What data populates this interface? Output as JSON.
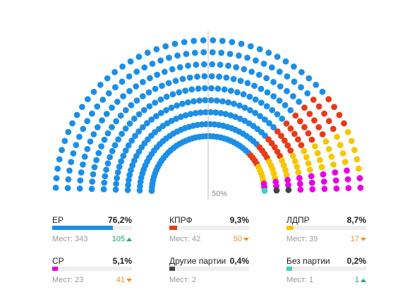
{
  "chart_data": {
    "type": "hemicycle",
    "total_seats": 450,
    "majority_label": "50%",
    "parties": [
      {
        "name": "ЕР",
        "percent": "76,2%",
        "percent_value": 76.2,
        "seats_label": "Мест:",
        "seats": 343,
        "change": "105",
        "direction": "up",
        "color": "#1b8fe8"
      },
      {
        "name": "КПРФ",
        "percent": "9,3%",
        "percent_value": 9.3,
        "seats_label": "Мест:",
        "seats": 42,
        "change": "50",
        "direction": "down",
        "color": "#e83a18"
      },
      {
        "name": "ЛДПР",
        "percent": "8,7%",
        "percent_value": 8.7,
        "seats_label": "Мест:",
        "seats": 39,
        "change": "17",
        "direction": "down",
        "color": "#f6c700"
      },
      {
        "name": "СР",
        "percent": "5,1%",
        "percent_value": 5.1,
        "seats_label": "Мест:",
        "seats": 23,
        "change": "41",
        "direction": "down",
        "color": "#e800e0"
      },
      {
        "name": "Другие партии",
        "percent": "0,4%",
        "percent_value": 0.4,
        "seats_label": "Мест:",
        "seats": 2,
        "change": "",
        "direction": "",
        "color": "#444444"
      },
      {
        "name": "Без партии",
        "percent": "0,2%",
        "percent_value": 0.2,
        "seats_label": "Мест:",
        "seats": 1,
        "change": "1",
        "direction": "up",
        "color": "#3fd0c0"
      }
    ]
  }
}
